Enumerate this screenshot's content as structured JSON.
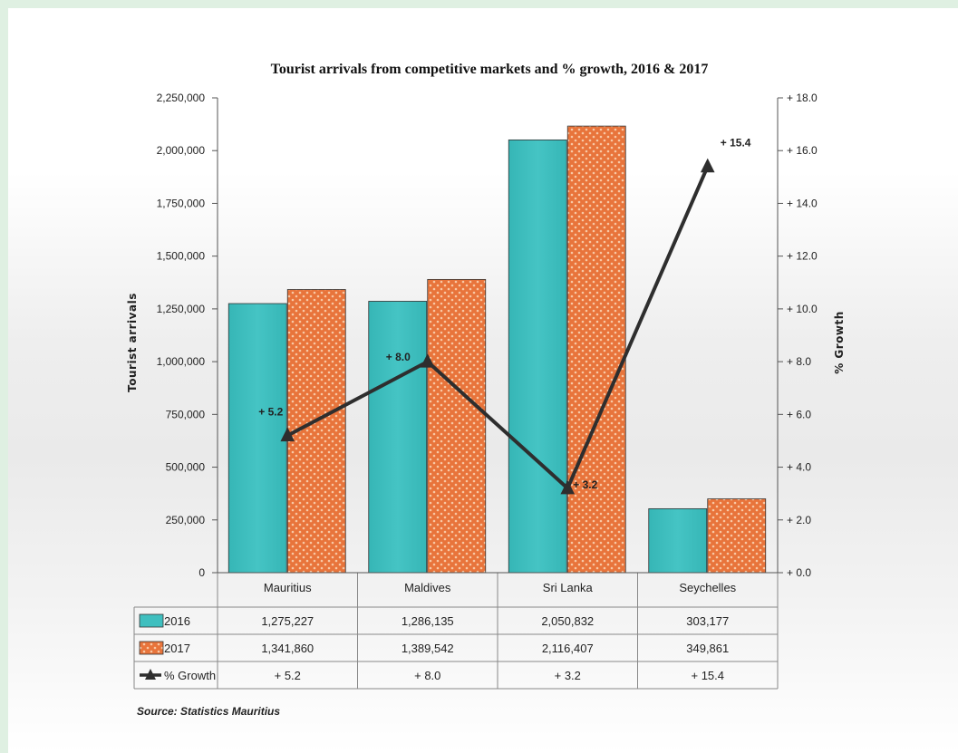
{
  "chart_data": {
    "type": "bar",
    "title": "Tourist arrivals  from competitive  markets and % growth, 2016 & 2017",
    "categories": [
      "Mauritius",
      "Maldives",
      "Sri Lanka",
      "Seychelles"
    ],
    "series": [
      {
        "name": "2016",
        "type": "bar",
        "axis": "left",
        "color": "#3fbfbf",
        "values": [
          1275227,
          1286135,
          2050832,
          303177
        ],
        "labels": [
          "1,275,227",
          "1,286,135",
          "2,050,832",
          "303,177"
        ]
      },
      {
        "name": "2017",
        "type": "bar",
        "axis": "left",
        "color": "#e8743b",
        "values": [
          1341860,
          1389542,
          2116407,
          349861
        ],
        "labels": [
          "1,341,860",
          "1,389,542",
          "2,116,407",
          "349,861"
        ]
      },
      {
        "name": "% Growth",
        "type": "line",
        "axis": "right",
        "color": "#2e2e2e",
        "values": [
          5.2,
          8.0,
          3.2,
          15.4
        ],
        "labels": [
          "+ 5.2",
          "+ 8.0",
          "+ 3.2",
          "+ 15.4"
        ]
      }
    ],
    "ylabel": "Tourist  arrivals",
    "ylabel_right": "% Growth",
    "ylim": [
      0,
      2250000
    ],
    "ylim_right": [
      0,
      18
    ],
    "yticks": [
      "0",
      "250,000",
      "500,000",
      "750,000",
      "1,000,000",
      "1,250,000",
      "1,500,000",
      "1,750,000",
      "2,000,000",
      "2,250,000"
    ],
    "yticks_right": [
      "+ 0.0",
      "+ 2.0",
      "+ 4.0",
      "+ 6.0",
      "+ 8.0",
      "+ 10.0",
      "+ 12.0",
      "+ 14.0",
      "+ 16.0",
      "+ 18.0"
    ],
    "grid": false,
    "legend": "data-table",
    "source": "Source:  Statistics Mauritius"
  }
}
